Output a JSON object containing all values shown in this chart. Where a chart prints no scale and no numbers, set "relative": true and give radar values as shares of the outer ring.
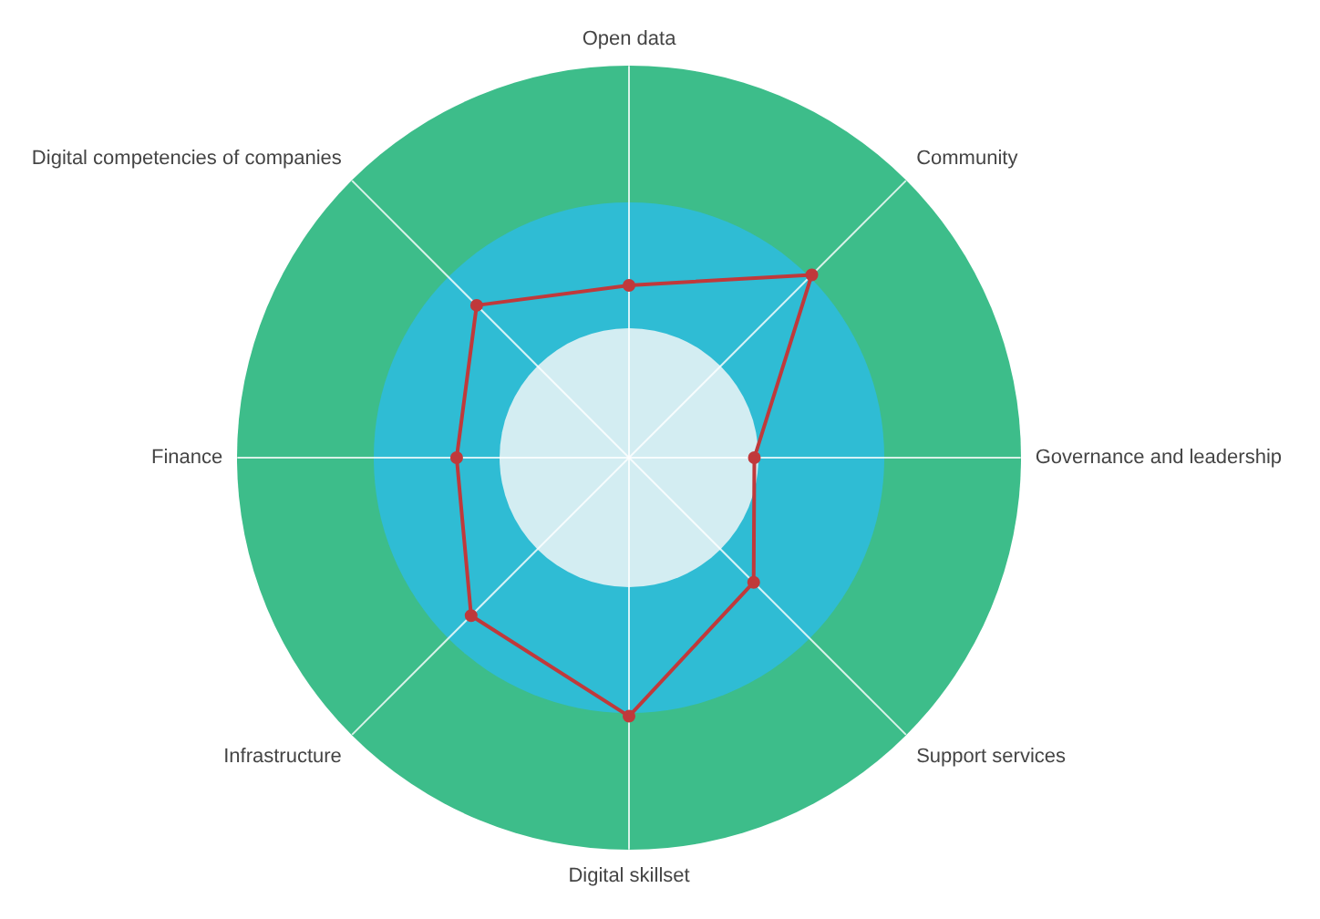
{
  "chart_data": {
    "type": "radar",
    "relative": true,
    "categories": [
      "Open data",
      "Community",
      "Governance and leadership",
      "Support services",
      "Digital skillset",
      "Infrastructure",
      "Finance",
      "Digital competencies of companies"
    ],
    "series": [
      {
        "color": "#c0393b",
        "values": [
          0.44,
          0.66,
          0.32,
          0.45,
          0.66,
          0.57,
          0.44,
          0.55
        ]
      }
    ],
    "grid": true,
    "legend": false,
    "marker": "circle",
    "line_style": "solid"
  }
}
